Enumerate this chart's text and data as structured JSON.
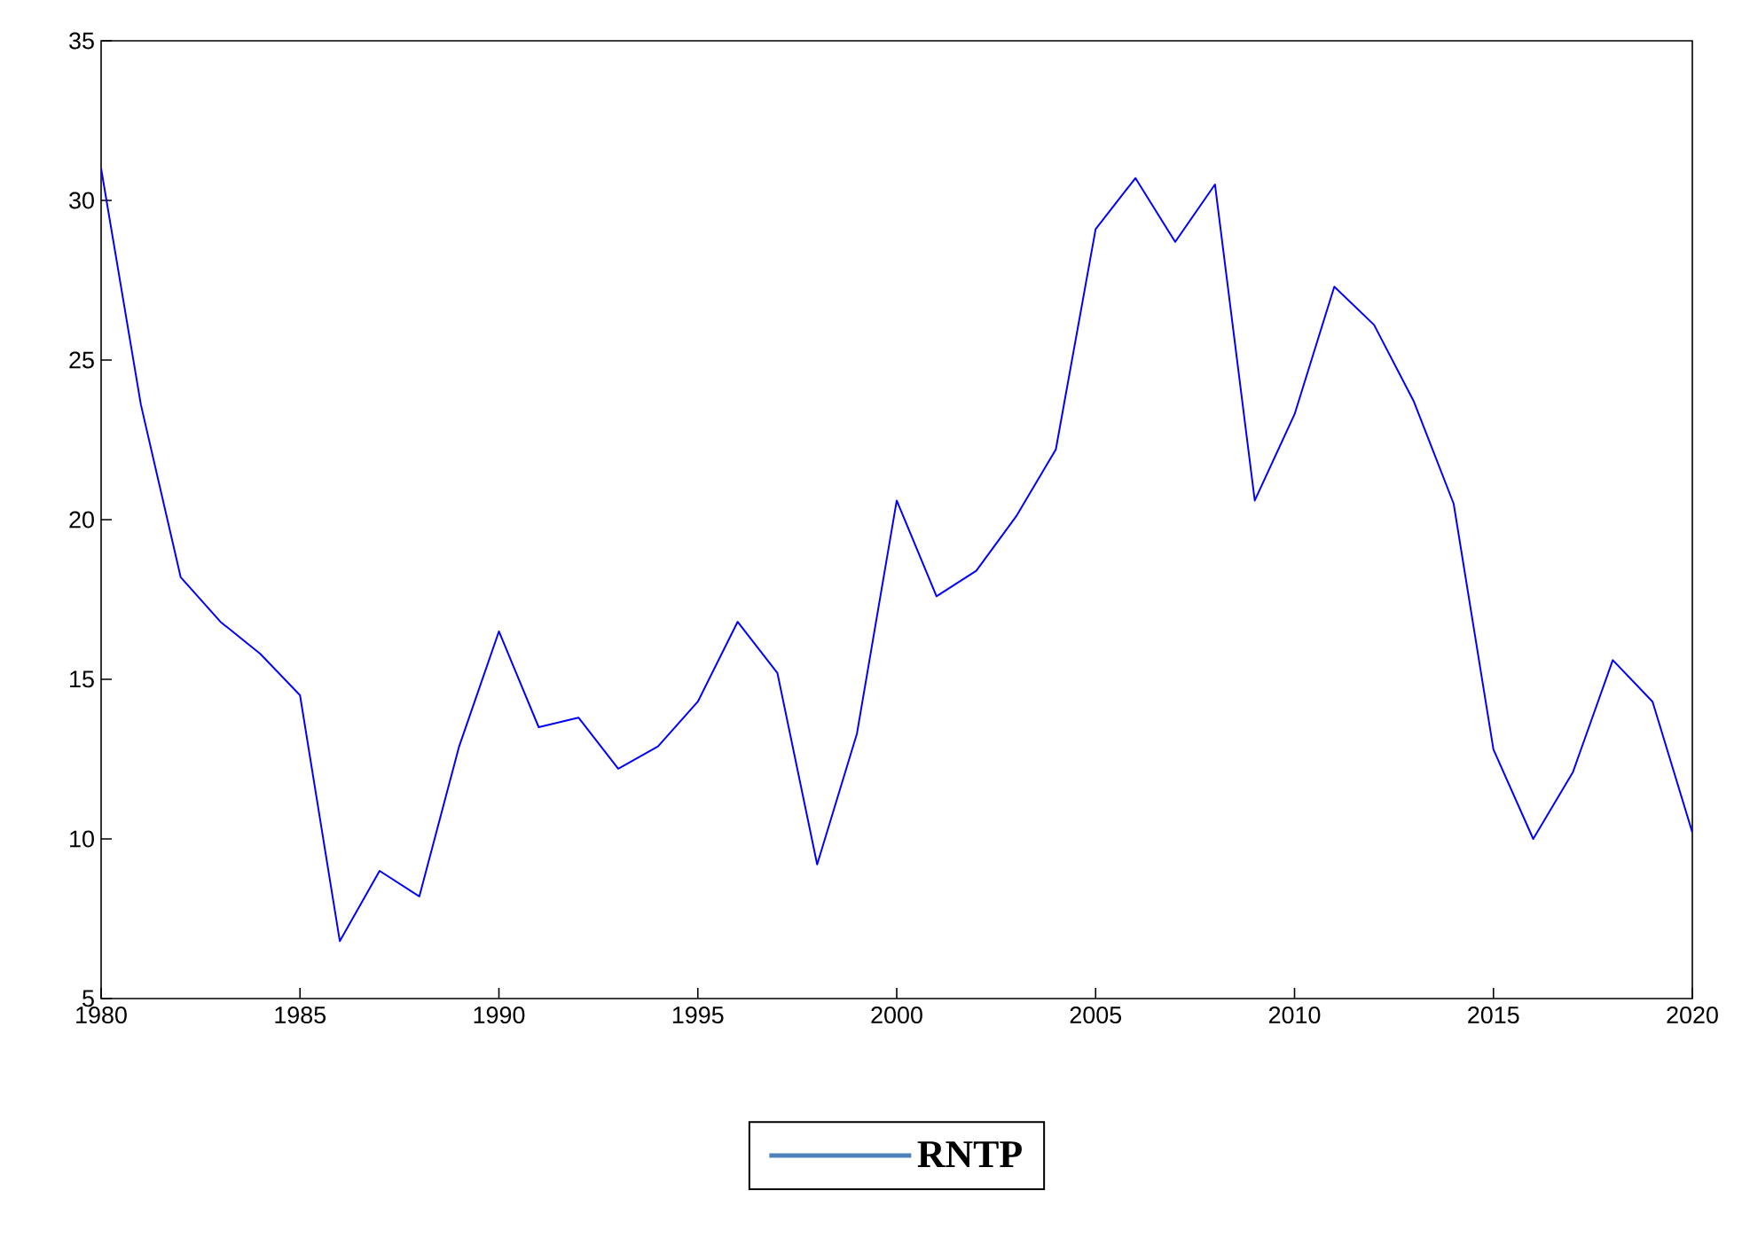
{
  "chart_data": {
    "type": "line",
    "x": [
      1980,
      1981,
      1982,
      1983,
      1984,
      1985,
      1986,
      1987,
      1988,
      1989,
      1990,
      1991,
      1992,
      1993,
      1994,
      1995,
      1996,
      1997,
      1998,
      1999,
      2000,
      2001,
      2002,
      2003,
      2004,
      2005,
      2006,
      2007,
      2008,
      2009,
      2010,
      2011,
      2012,
      2013,
      2014,
      2015,
      2016,
      2017,
      2018,
      2019,
      2020
    ],
    "series": [
      {
        "name": "RNTP",
        "color": "#0000ff",
        "values": [
          31.0,
          23.6,
          18.2,
          16.8,
          15.8,
          14.5,
          6.8,
          9.0,
          8.2,
          12.9,
          16.5,
          13.5,
          13.8,
          12.2,
          12.9,
          14.3,
          16.8,
          15.2,
          9.2,
          13.3,
          20.6,
          17.6,
          18.4,
          20.1,
          22.2,
          29.1,
          30.7,
          28.7,
          30.5,
          20.6,
          23.3,
          27.3,
          26.1,
          23.7,
          20.5,
          12.8,
          10.0,
          12.1,
          15.6,
          14.3,
          10.2
        ]
      }
    ],
    "xlim": [
      1980,
      2020
    ],
    "xticks": [
      1980,
      1985,
      1990,
      1995,
      2000,
      2005,
      2010,
      2015,
      2020
    ],
    "ylim": [
      5,
      35
    ],
    "yticks": [
      5,
      10,
      15,
      20,
      25,
      30,
      35
    ],
    "legend": "bottom"
  }
}
